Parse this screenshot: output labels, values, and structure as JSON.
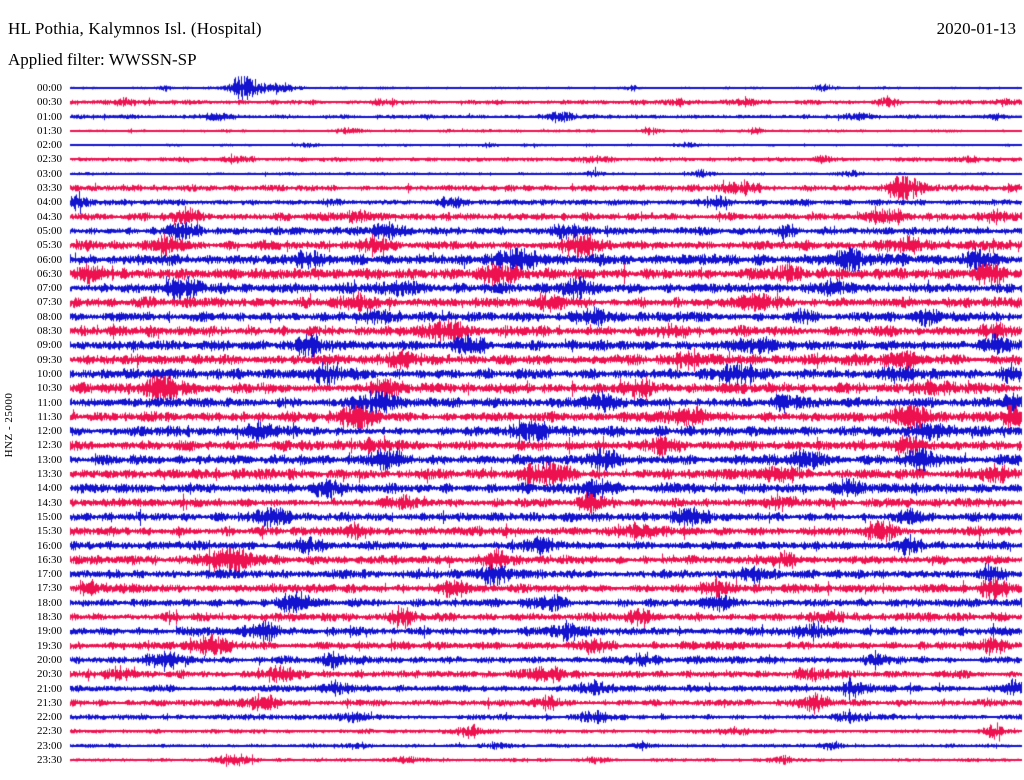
{
  "header": {
    "title": "HL Pothia, Kalymnos Isl. (Hospital)",
    "date": "2020-01-13",
    "filter_label": "Applied filter: WWSSN-SP"
  },
  "y_axis": {
    "label": "HNZ - 25000"
  },
  "colors": {
    "trace_blue": "#1212CF",
    "trace_red": "#EE1150",
    "text": "#000000",
    "background": "#FFFFFF"
  },
  "chart_data": {
    "type": "line",
    "subtype": "helicorder-daily-seismogram",
    "title": "HL Pothia, Kalymnos Isl. (Hospital)",
    "date": "2020-01-13",
    "filter": "WWSSN-SP",
    "channel": "HNZ",
    "scale": 25000,
    "row_interval_minutes": 30,
    "minutes_per_row": 30,
    "trace_color_cycle": [
      "blue",
      "red"
    ],
    "legend_position": "none",
    "grid": false,
    "burst_format": "[position_fraction_of_row, peak_amplitude_px, gaussian_width_fraction]",
    "rows": [
      {
        "time": "00:00",
        "color": "blue",
        "noise": 0.8,
        "bursts": [
          [
            0.185,
            8,
            0.012
          ],
          [
            0.22,
            3.5,
            0.01
          ],
          [
            0.1,
            1.5,
            0.006
          ],
          [
            0.59,
            1.5,
            0.006
          ],
          [
            0.79,
            2.5,
            0.007
          ]
        ]
      },
      {
        "time": "00:30",
        "color": "red",
        "noise": 1.3,
        "bursts": [
          [
            0.06,
            2,
            0.01
          ],
          [
            0.33,
            2,
            0.01
          ],
          [
            0.64,
            2,
            0.008
          ],
          [
            0.71,
            2,
            0.008
          ],
          [
            0.86,
            2.5,
            0.008
          ],
          [
            0.98,
            2,
            0.006
          ]
        ]
      },
      {
        "time": "01:00",
        "color": "blue",
        "noise": 1.1,
        "bursts": [
          [
            0.155,
            3,
            0.012
          ],
          [
            0.515,
            3.5,
            0.012
          ],
          [
            0.83,
            2,
            0.01
          ],
          [
            0.97,
            2,
            0.008
          ]
        ]
      },
      {
        "time": "01:30",
        "color": "red",
        "noise": 0.9,
        "bursts": [
          [
            0.29,
            2,
            0.008
          ],
          [
            0.61,
            2,
            0.008
          ],
          [
            0.72,
            2,
            0.006
          ]
        ]
      },
      {
        "time": "02:00",
        "color": "blue",
        "noise": 0.7,
        "bursts": [
          [
            0.25,
            1.5,
            0.008
          ],
          [
            0.44,
            1.5,
            0.006
          ],
          [
            0.65,
            1.5,
            0.008
          ]
        ]
      },
      {
        "time": "02:30",
        "color": "red",
        "noise": 1.2,
        "bursts": [
          [
            0.18,
            2,
            0.01
          ],
          [
            0.55,
            2,
            0.012
          ],
          [
            0.79,
            2,
            0.008
          ],
          [
            0.945,
            2,
            0.008
          ]
        ]
      },
      {
        "time": "03:00",
        "color": "blue",
        "noise": 0.8,
        "bursts": [
          [
            0.55,
            2,
            0.008
          ],
          [
            0.66,
            2,
            0.008
          ],
          [
            0.82,
            2.5,
            0.008
          ]
        ]
      },
      {
        "time": "03:30",
        "color": "red",
        "noise": 1.7,
        "bursts": [
          [
            0.705,
            4,
            0.012
          ],
          [
            0.875,
            8,
            0.014
          ],
          [
            0.99,
            3,
            0.006
          ]
        ]
      },
      {
        "time": "04:00",
        "color": "blue",
        "noise": 1.7,
        "bursts": [
          [
            0.008,
            6,
            0.006
          ],
          [
            0.4,
            2.5,
            0.01
          ],
          [
            0.68,
            3,
            0.01
          ]
        ]
      },
      {
        "time": "04:30",
        "color": "red",
        "noise": 2.1,
        "bursts": [
          [
            0.12,
            4,
            0.012
          ],
          [
            0.3,
            4,
            0.01
          ],
          [
            0.86,
            4.5,
            0.014
          ],
          [
            0.97,
            3,
            0.008
          ]
        ]
      },
      {
        "time": "05:00",
        "color": "blue",
        "noise": 2.1,
        "bursts": [
          [
            0.12,
            5,
            0.012
          ],
          [
            0.33,
            4,
            0.012
          ],
          [
            0.52,
            4,
            0.01
          ],
          [
            0.75,
            3,
            0.01
          ]
        ]
      },
      {
        "time": "05:30",
        "color": "red",
        "noise": 2.6,
        "bursts": [
          [
            0.1,
            5,
            0.012
          ],
          [
            0.32,
            5,
            0.012
          ],
          [
            0.535,
            7,
            0.014
          ],
          [
            0.88,
            4,
            0.012
          ]
        ]
      },
      {
        "time": "06:00",
        "color": "blue",
        "noise": 2.9,
        "bursts": [
          [
            0.25,
            4,
            0.012
          ],
          [
            0.47,
            6,
            0.014
          ],
          [
            0.82,
            7.5,
            0.012
          ],
          [
            0.95,
            5,
            0.01
          ]
        ]
      },
      {
        "time": "06:30",
        "color": "red",
        "noise": 2.9,
        "bursts": [
          [
            0.02,
            6,
            0.01
          ],
          [
            0.45,
            6,
            0.014
          ],
          [
            0.75,
            4,
            0.012
          ],
          [
            0.965,
            7,
            0.012
          ]
        ]
      },
      {
        "time": "07:00",
        "color": "blue",
        "noise": 2.7,
        "bursts": [
          [
            0.12,
            7,
            0.012
          ],
          [
            0.35,
            4,
            0.012
          ],
          [
            0.53,
            5,
            0.012
          ],
          [
            0.8,
            4,
            0.01
          ]
        ]
      },
      {
        "time": "07:30",
        "color": "red",
        "noise": 2.7,
        "bursts": [
          [
            0.3,
            5,
            0.014
          ],
          [
            0.5,
            4,
            0.012
          ],
          [
            0.72,
            4,
            0.012
          ]
        ]
      },
      {
        "time": "08:00",
        "color": "blue",
        "noise": 2.5,
        "bursts": [
          [
            0.33,
            3.5,
            0.012
          ],
          [
            0.55,
            4,
            0.012
          ],
          [
            0.77,
            4,
            0.01
          ],
          [
            0.9,
            3.5,
            0.01
          ]
        ]
      },
      {
        "time": "08:30",
        "color": "red",
        "noise": 2.7,
        "bursts": [
          [
            0.395,
            6,
            0.014
          ],
          [
            0.63,
            4,
            0.012
          ],
          [
            0.97,
            4,
            0.01
          ]
        ]
      },
      {
        "time": "09:00",
        "color": "blue",
        "noise": 2.7,
        "bursts": [
          [
            0.25,
            5,
            0.012
          ],
          [
            0.42,
            5,
            0.012
          ],
          [
            0.72,
            4,
            0.012
          ],
          [
            0.97,
            5,
            0.01
          ]
        ]
      },
      {
        "time": "09:30",
        "color": "red",
        "noise": 2.7,
        "bursts": [
          [
            0.35,
            4,
            0.012
          ],
          [
            0.65,
            4,
            0.012
          ],
          [
            0.875,
            6,
            0.014
          ]
        ]
      },
      {
        "time": "10:00",
        "color": "blue",
        "noise": 2.7,
        "bursts": [
          [
            0.27,
            5.5,
            0.012
          ],
          [
            0.7,
            6,
            0.014
          ],
          [
            0.87,
            4,
            0.012
          ],
          [
            0.99,
            6,
            0.008
          ]
        ]
      },
      {
        "time": "10:30",
        "color": "red",
        "noise": 2.7,
        "bursts": [
          [
            0.095,
            7,
            0.014
          ],
          [
            0.33,
            5,
            0.012
          ],
          [
            0.6,
            4,
            0.012
          ],
          [
            0.91,
            4,
            0.012
          ]
        ]
      },
      {
        "time": "11:00",
        "color": "blue",
        "noise": 2.7,
        "bursts": [
          [
            0.32,
            6,
            0.014
          ],
          [
            0.56,
            5,
            0.012
          ],
          [
            0.75,
            4,
            0.012
          ],
          [
            0.99,
            5,
            0.008
          ]
        ]
      },
      {
        "time": "11:30",
        "color": "red",
        "noise": 2.7,
        "bursts": [
          [
            0.3,
            7,
            0.014
          ],
          [
            0.65,
            5,
            0.012
          ],
          [
            0.88,
            7,
            0.014
          ],
          [
            0.99,
            6,
            0.008
          ]
        ]
      },
      {
        "time": "12:00",
        "color": "blue",
        "noise": 2.7,
        "bursts": [
          [
            0.2,
            4,
            0.012
          ],
          [
            0.48,
            6,
            0.014
          ],
          [
            0.9,
            5,
            0.012
          ]
        ]
      },
      {
        "time": "12:30",
        "color": "red",
        "noise": 2.7,
        "bursts": [
          [
            0.32,
            4,
            0.012
          ],
          [
            0.62,
            4,
            0.012
          ],
          [
            0.88,
            5,
            0.012
          ]
        ]
      },
      {
        "time": "13:00",
        "color": "blue",
        "noise": 2.7,
        "bursts": [
          [
            0.335,
            6,
            0.012
          ],
          [
            0.56,
            6,
            0.012
          ],
          [
            0.77,
            5,
            0.012
          ],
          [
            0.89,
            7,
            0.012
          ]
        ]
      },
      {
        "time": "13:30",
        "color": "red",
        "noise": 2.7,
        "bursts": [
          [
            0.5,
            7,
            0.014
          ],
          [
            0.75,
            4,
            0.012
          ],
          [
            0.97,
            5,
            0.01
          ]
        ]
      },
      {
        "time": "14:00",
        "color": "blue",
        "noise": 2.7,
        "bursts": [
          [
            0.27,
            4,
            0.012
          ],
          [
            0.55,
            5,
            0.014
          ],
          [
            0.82,
            4,
            0.012
          ]
        ]
      },
      {
        "time": "14:30",
        "color": "red",
        "noise": 2.4,
        "bursts": [
          [
            0.35,
            4,
            0.012
          ],
          [
            0.55,
            4,
            0.012
          ],
          [
            0.75,
            4,
            0.012
          ]
        ]
      },
      {
        "time": "15:00",
        "color": "blue",
        "noise": 2.4,
        "bursts": [
          [
            0.21,
            6,
            0.014
          ],
          [
            0.65,
            6,
            0.012
          ],
          [
            0.88,
            4,
            0.012
          ]
        ]
      },
      {
        "time": "15:30",
        "color": "red",
        "noise": 2.4,
        "bursts": [
          [
            0.3,
            4,
            0.012
          ],
          [
            0.6,
            4,
            0.012
          ],
          [
            0.85,
            5,
            0.012
          ]
        ]
      },
      {
        "time": "16:00",
        "color": "blue",
        "noise": 2.4,
        "bursts": [
          [
            0.25,
            4,
            0.012
          ],
          [
            0.5,
            4,
            0.012
          ],
          [
            0.88,
            4.5,
            0.012
          ]
        ]
      },
      {
        "time": "16:30",
        "color": "red",
        "noise": 2.4,
        "bursts": [
          [
            0.17,
            8,
            0.016
          ],
          [
            0.45,
            5,
            0.012
          ],
          [
            0.75,
            4,
            0.012
          ]
        ]
      },
      {
        "time": "17:00",
        "color": "blue",
        "noise": 2.4,
        "bursts": [
          [
            0.45,
            5,
            0.014
          ],
          [
            0.72,
            4,
            0.012
          ],
          [
            0.97,
            4,
            0.01
          ]
        ]
      },
      {
        "time": "17:30",
        "color": "red",
        "noise": 2.4,
        "bursts": [
          [
            0.02,
            4,
            0.008
          ],
          [
            0.4,
            4,
            0.012
          ],
          [
            0.68,
            4,
            0.012
          ],
          [
            0.97,
            5.5,
            0.01
          ]
        ]
      },
      {
        "time": "18:00",
        "color": "blue",
        "noise": 2.2,
        "bursts": [
          [
            0.235,
            6,
            0.012
          ],
          [
            0.5,
            4,
            0.012
          ],
          [
            0.68,
            5,
            0.012
          ]
        ]
      },
      {
        "time": "18:30",
        "color": "red",
        "noise": 2.2,
        "bursts": [
          [
            0.35,
            4,
            0.012
          ],
          [
            0.6,
            4,
            0.012
          ],
          [
            0.8,
            4,
            0.012
          ]
        ]
      },
      {
        "time": "19:00",
        "color": "blue",
        "noise": 2.2,
        "bursts": [
          [
            0.2,
            5,
            0.012
          ],
          [
            0.52,
            5,
            0.012
          ],
          [
            0.78,
            4,
            0.012
          ]
        ]
      },
      {
        "time": "19:30",
        "color": "red",
        "noise": 2.2,
        "bursts": [
          [
            0.15,
            7,
            0.012
          ],
          [
            0.55,
            4,
            0.012
          ],
          [
            0.97,
            4.5,
            0.01
          ]
        ]
      },
      {
        "time": "20:00",
        "color": "blue",
        "noise": 2.0,
        "bursts": [
          [
            0.1,
            5,
            0.012
          ],
          [
            0.28,
            4,
            0.012
          ],
          [
            0.6,
            3.5,
            0.012
          ],
          [
            0.85,
            3.5,
            0.012
          ]
        ]
      },
      {
        "time": "20:30",
        "color": "red",
        "noise": 2.0,
        "bursts": [
          [
            0.05,
            4,
            0.01
          ],
          [
            0.22,
            4,
            0.012
          ],
          [
            0.5,
            4,
            0.012
          ],
          [
            0.78,
            3.5,
            0.012
          ]
        ]
      },
      {
        "time": "21:00",
        "color": "blue",
        "noise": 1.8,
        "bursts": [
          [
            0.28,
            4,
            0.012
          ],
          [
            0.55,
            3.5,
            0.012
          ],
          [
            0.82,
            4,
            0.012
          ],
          [
            0.99,
            4,
            0.008
          ]
        ]
      },
      {
        "time": "21:30",
        "color": "red",
        "noise": 1.8,
        "bursts": [
          [
            0.2,
            5,
            0.012
          ],
          [
            0.5,
            3.5,
            0.012
          ],
          [
            0.78,
            5.5,
            0.012
          ]
        ]
      },
      {
        "time": "22:00",
        "color": "blue",
        "noise": 1.5,
        "bursts": [
          [
            0.3,
            3,
            0.012
          ],
          [
            0.55,
            3.5,
            0.012
          ],
          [
            0.82,
            3,
            0.012
          ]
        ]
      },
      {
        "time": "22:30",
        "color": "red",
        "noise": 1.2,
        "bursts": [
          [
            0.42,
            3,
            0.012
          ],
          [
            0.7,
            2.5,
            0.012
          ],
          [
            0.97,
            4,
            0.008
          ]
        ]
      },
      {
        "time": "23:00",
        "color": "blue",
        "noise": 1.0,
        "bursts": [
          [
            0.3,
            2,
            0.01
          ],
          [
            0.45,
            2,
            0.01
          ],
          [
            0.6,
            2.5,
            0.01
          ],
          [
            0.8,
            2,
            0.01
          ]
        ]
      },
      {
        "time": "23:30",
        "color": "red",
        "noise": 1.0,
        "bursts": [
          [
            0.17,
            4,
            0.012
          ],
          [
            0.35,
            2,
            0.01
          ],
          [
            0.55,
            2,
            0.01
          ],
          [
            0.75,
            2,
            0.01
          ]
        ]
      }
    ]
  }
}
